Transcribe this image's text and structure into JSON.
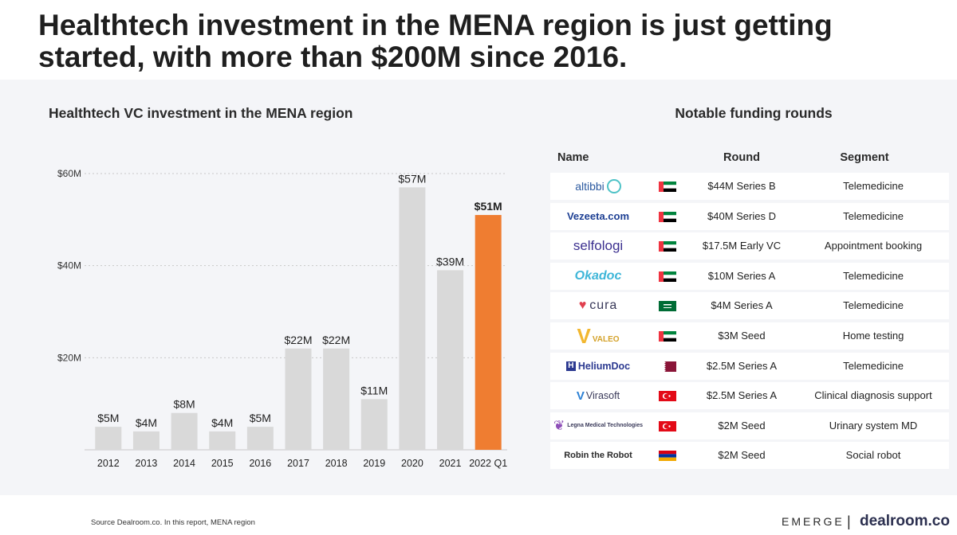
{
  "headline": "Healthtech investment in the MENA region is just getting started, with more than $200M since 2016.",
  "chart_data": {
    "type": "bar",
    "title": "Healthtech VC investment in the MENA region",
    "categories": [
      "2012",
      "2013",
      "2014",
      "2015",
      "2016",
      "2017",
      "2018",
      "2019",
      "2020",
      "2021",
      "2022 Q1"
    ],
    "values": [
      5,
      4,
      8,
      4,
      5,
      22,
      22,
      11,
      57,
      39,
      51
    ],
    "data_labels": [
      "$5M",
      "$4M",
      "$8M",
      "$4M",
      "$5M",
      "$22M",
      "$22M",
      "$11M",
      "$57M",
      "$39M",
      "$51M"
    ],
    "highlight_index": 10,
    "bar_color": "#d9d9d9",
    "highlight_color": "#ef7d31",
    "yticks": [
      20,
      40,
      60
    ],
    "ytick_labels": [
      "$20M",
      "$40M",
      "$60M"
    ],
    "ylim": [
      0,
      60
    ],
    "grid": true,
    "xlabel": "",
    "ylabel": ""
  },
  "table": {
    "title": "Notable funding rounds",
    "headers": {
      "name": "Name",
      "round": "Round",
      "segment": "Segment"
    },
    "rows": [
      {
        "company": "altibbi",
        "logo_text": "altibbi",
        "country": "UAE",
        "round": "$44M Series B",
        "segment": "Telemedicine"
      },
      {
        "company": "Vezeeta",
        "logo_text": "Vezeeta.com",
        "country": "UAE",
        "round": "$40M Series D",
        "segment": "Telemedicine"
      },
      {
        "company": "selfologi",
        "logo_text": "selfologi",
        "country": "UAE",
        "round": "$17.5M Early VC",
        "segment": "Appointment booking"
      },
      {
        "company": "Okadoc",
        "logo_text": "Okadoc",
        "country": "UAE",
        "round": "$10M Series A",
        "segment": "Telemedicine"
      },
      {
        "company": "cura",
        "logo_text": "cura",
        "country": "Saudi Arabia",
        "round": "$4M Series A",
        "segment": "Telemedicine"
      },
      {
        "company": "Valeo",
        "logo_text": "VALEO",
        "country": "UAE",
        "round": "$3M Seed",
        "segment": "Home testing"
      },
      {
        "company": "HeliumDoc",
        "logo_text": "HeliumDoc",
        "country": "Qatar",
        "round": "$2.5M Series A",
        "segment": "Telemedicine"
      },
      {
        "company": "Virasoft",
        "logo_text": "Virasoft",
        "country": "Turkey",
        "round": "$2.5M Series A",
        "segment": "Clinical diagnosis support"
      },
      {
        "company": "Legna Medical Technologies",
        "logo_text": "Legna Medical Technologies",
        "country": "Turkey",
        "round": "$2M Seed",
        "segment": "Urinary system MD"
      },
      {
        "company": "Robin the Robot",
        "logo_text": "Robin the Robot",
        "country": "Armenia",
        "round": "$2M Seed",
        "segment": "Social robot"
      }
    ]
  },
  "footer": {
    "source": "Source Dealroom.co. In this report, MENA region",
    "brand_emerge": "EMERGE",
    "brand_separator": "|",
    "brand_dealroom": "dealroom.co"
  }
}
